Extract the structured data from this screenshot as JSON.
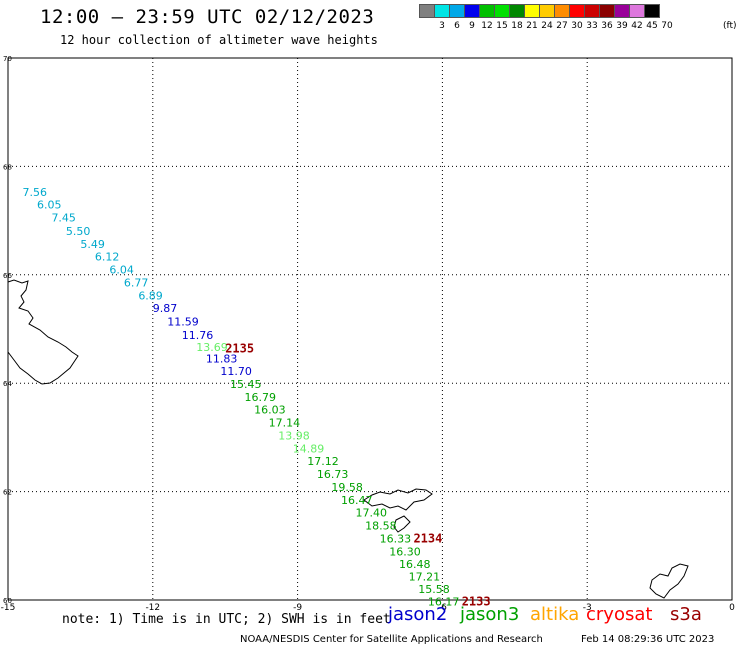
{
  "header": {
    "title": "12:00 – 23:59 UTC 02/12/2023",
    "subtitle": "12 hour collection of altimeter wave heights"
  },
  "colorbar": {
    "unit": "(ft)",
    "ticks": [
      "3",
      "6",
      "9",
      "12",
      "15",
      "18",
      "21",
      "24",
      "27",
      "30",
      "33",
      "36",
      "39",
      "42",
      "45",
      "70"
    ],
    "colors": [
      "#808080",
      "#00e5e5",
      "#00a8e8",
      "#0000ee",
      "#00c000",
      "#00e000",
      "#008800",
      "#ffff00",
      "#ffcc00",
      "#ff8c00",
      "#ff0000",
      "#cc0000",
      "#8b0000",
      "#990099",
      "#dd77dd",
      "#000000"
    ]
  },
  "map": {
    "lat_range": [
      60,
      70
    ],
    "lon_range": [
      -15,
      0
    ],
    "lat_ticks": [
      "60",
      "62",
      "64",
      "66",
      "68",
      "70"
    ],
    "lon_ticks": [
      "-15",
      "-12",
      "-9",
      "-6",
      "-3",
      "0"
    ],
    "grid": "dotted"
  },
  "satellite_colors": {
    "jason2": "#0000cc",
    "jason3": "#00a000",
    "altika": "#ffa500",
    "cryosat": "#ff0000",
    "s3a": "#990000"
  },
  "observations": [
    {
      "lon": -14.7,
      "lat": 67.45,
      "value": "7.56",
      "color": "#00a8cc"
    },
    {
      "lon": -14.4,
      "lat": 67.22,
      "value": "6.05",
      "color": "#00a8cc"
    },
    {
      "lon": -14.1,
      "lat": 66.98,
      "value": "7.45",
      "color": "#00a8cc"
    },
    {
      "lon": -13.8,
      "lat": 66.73,
      "value": "5.50",
      "color": "#00a8cc"
    },
    {
      "lon": -13.5,
      "lat": 66.49,
      "value": "5.49",
      "color": "#00a8cc"
    },
    {
      "lon": -13.2,
      "lat": 66.26,
      "value": "6.12",
      "color": "#00a8cc"
    },
    {
      "lon": -12.9,
      "lat": 66.02,
      "value": "6.04",
      "color": "#00a8cc"
    },
    {
      "lon": -12.6,
      "lat": 65.78,
      "value": "6.77",
      "color": "#00a8cc"
    },
    {
      "lon": -12.3,
      "lat": 65.54,
      "value": "6.89",
      "color": "#00a8cc"
    },
    {
      "lon": -12.0,
      "lat": 65.31,
      "value": "9.87",
      "color": "#0000cc"
    },
    {
      "lon": -11.7,
      "lat": 65.06,
      "value": "11.59",
      "color": "#0000cc"
    },
    {
      "lon": -11.4,
      "lat": 64.82,
      "value": "11.76",
      "color": "#0000cc"
    },
    {
      "lon": -11.1,
      "lat": 64.59,
      "value": "13.69",
      "color": "#66ee66"
    },
    {
      "lon": -10.9,
      "lat": 64.38,
      "value": "11.83",
      "color": "#0000cc"
    },
    {
      "lon": -10.6,
      "lat": 64.15,
      "value": "11.70",
      "color": "#0000cc"
    },
    {
      "lon": -10.4,
      "lat": 63.91,
      "value": "15.45",
      "color": "#00a000"
    },
    {
      "lon": -10.1,
      "lat": 63.67,
      "value": "16.79",
      "color": "#00a000"
    },
    {
      "lon": -9.9,
      "lat": 63.44,
      "value": "16.03",
      "color": "#00a000"
    },
    {
      "lon": -9.6,
      "lat": 63.2,
      "value": "17.14",
      "color": "#00a000"
    },
    {
      "lon": -9.4,
      "lat": 62.96,
      "value": "13.98",
      "color": "#66ee66"
    },
    {
      "lon": -9.1,
      "lat": 62.72,
      "value": "14.89",
      "color": "#66ee66"
    },
    {
      "lon": -8.8,
      "lat": 62.49,
      "value": "17.12",
      "color": "#00a000"
    },
    {
      "lon": -8.6,
      "lat": 62.25,
      "value": "16.73",
      "color": "#00a000"
    },
    {
      "lon": -8.3,
      "lat": 62.01,
      "value": "19.58",
      "color": "#00a000"
    },
    {
      "lon": -8.1,
      "lat": 61.77,
      "value": "16.47",
      "color": "#00a000"
    },
    {
      "lon": -7.8,
      "lat": 61.54,
      "value": "17.40",
      "color": "#00a000"
    },
    {
      "lon": -7.6,
      "lat": 61.3,
      "value": "18.58",
      "color": "#00a000"
    },
    {
      "lon": -7.3,
      "lat": 61.06,
      "value": "16.33",
      "color": "#00a000"
    },
    {
      "lon": -7.1,
      "lat": 60.82,
      "value": "16.30",
      "color": "#00a000"
    },
    {
      "lon": -6.9,
      "lat": 60.59,
      "value": "16.48",
      "color": "#00a000"
    },
    {
      "lon": -6.7,
      "lat": 60.36,
      "value": "17.21",
      "color": "#00a000"
    },
    {
      "lon": -6.5,
      "lat": 60.13,
      "value": "15.58",
      "color": "#00a000"
    },
    {
      "lon": -6.3,
      "lat": 59.9,
      "value": "16.17",
      "color": "#00a000"
    }
  ],
  "time_labels": [
    {
      "lon": -10.5,
      "lat": 64.57,
      "value": "2135",
      "color": "#990000"
    },
    {
      "lon": -6.6,
      "lat": 61.06,
      "value": "2134",
      "color": "#990000"
    },
    {
      "lon": -5.6,
      "lat": 59.9,
      "value": "2133",
      "color": "#990000"
    }
  ],
  "footer": {
    "note": "note: 1) Time is in UTC; 2) SWH is in feet",
    "legend": [
      {
        "label": "jason2",
        "color": "#0000cc"
      },
      {
        "label": "jason3",
        "color": "#00a000"
      },
      {
        "label": "altika",
        "color": "#ffa500"
      },
      {
        "label": "cryosat",
        "color": "#ff0000"
      },
      {
        "label": "s3a",
        "color": "#990000"
      }
    ],
    "credit": "NOAA/NESDIS Center for Satellite Applications and Research",
    "timestamp": "Feb 14 08:29:36 UTC 2023"
  }
}
